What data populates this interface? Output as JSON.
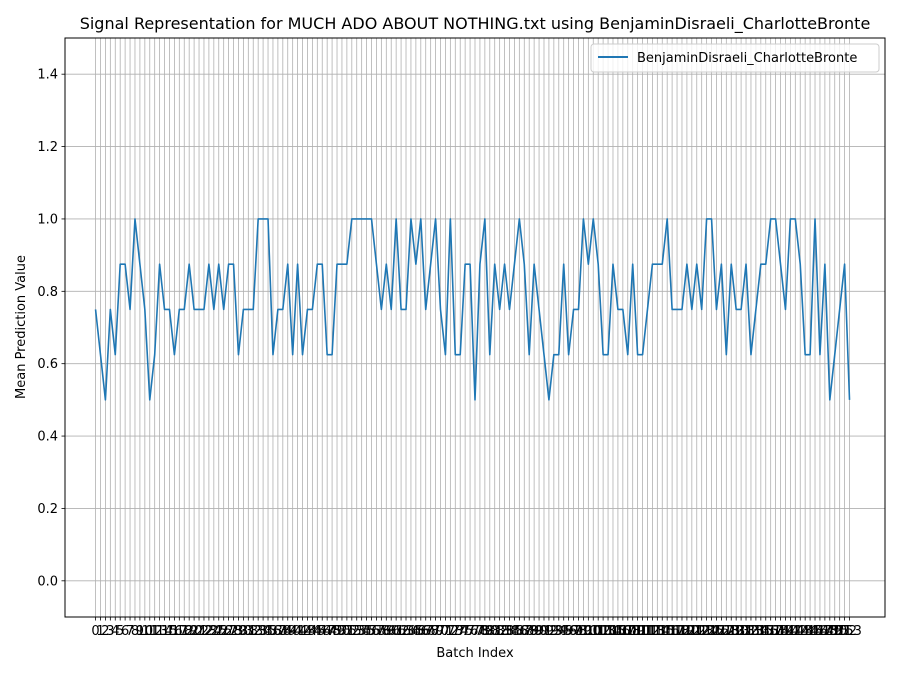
{
  "chart_data": {
    "type": "line",
    "title": "Signal Representation for MUCH ADO ABOUT NOTHING.txt using BenjaminDisraeli_CharlotteBronte",
    "xlabel": "Batch Index",
    "ylabel": "Mean Prediction Value",
    "ylim": [
      -0.1,
      1.5
    ],
    "yticks": [
      0.0,
      0.2,
      0.4,
      0.6,
      0.8,
      1.0,
      1.2,
      1.4
    ],
    "xlim": [
      -6.2,
      160.2
    ],
    "grid": true,
    "legend_position": "top-right",
    "color": "#1f77b4",
    "series": [
      {
        "name": "BenjaminDisraeli_CharlotteBronte",
        "values": [
          0.75,
          0.625,
          0.5,
          0.75,
          0.625,
          0.875,
          0.875,
          0.75,
          1.0,
          0.875,
          0.75,
          0.5,
          0.625,
          0.875,
          0.75,
          0.75,
          0.625,
          0.75,
          0.75,
          0.875,
          0.75,
          0.75,
          0.75,
          0.875,
          0.75,
          0.875,
          0.75,
          0.875,
          0.875,
          0.625,
          0.75,
          0.75,
          0.75,
          1.0,
          1.0,
          1.0,
          0.625,
          0.75,
          0.75,
          0.875,
          0.625,
          0.875,
          0.625,
          0.75,
          0.75,
          0.875,
          0.875,
          0.625,
          0.625,
          0.875,
          0.875,
          0.875,
          1.0,
          1.0,
          1.0,
          1.0,
          1.0,
          0.875,
          0.75,
          0.875,
          0.75,
          1.0,
          0.75,
          0.75,
          1.0,
          0.875,
          1.0,
          0.75,
          0.875,
          1.0,
          0.75,
          0.625,
          1.0,
          0.625,
          0.625,
          0.875,
          0.875,
          0.5,
          0.875,
          1.0,
          0.625,
          0.875,
          0.75,
          0.875,
          0.75,
          0.875,
          1.0,
          0.875,
          0.625,
          0.875,
          0.75,
          0.625,
          0.5,
          0.625,
          0.625,
          0.875,
          0.625,
          0.75,
          0.75,
          1.0,
          0.875,
          1.0,
          0.875,
          0.625,
          0.625,
          0.875,
          0.75,
          0.75,
          0.625,
          0.875,
          0.625,
          0.625,
          0.75,
          0.875,
          0.875,
          0.875,
          1.0,
          0.75,
          0.75,
          0.75,
          0.875,
          0.75,
          0.875,
          0.75,
          1.0,
          1.0,
          0.75,
          0.875,
          0.625,
          0.875,
          0.75,
          0.75,
          0.875,
          0.625,
          0.75,
          0.875,
          0.875,
          1.0,
          1.0,
          0.875,
          0.75,
          1.0,
          1.0,
          0.875,
          0.625,
          0.625,
          1.0,
          0.625,
          0.875,
          0.5,
          0.625,
          0.75,
          0.875,
          0.5
        ]
      }
    ]
  }
}
